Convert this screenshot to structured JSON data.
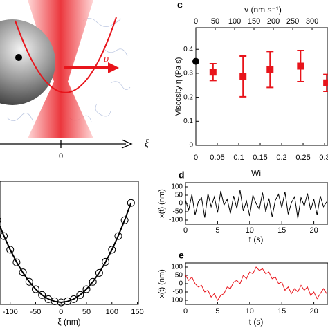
{
  "illustration": {
    "velocity_label": "υ",
    "axis_tick": "0",
    "axis_label": "ξ"
  },
  "chart_data": [
    {
      "type": "errorbar",
      "panel": "c",
      "ylabel": "Viscosity η (Pa s)",
      "xlabel": "Wi",
      "x2label": "v (nm s⁻¹)",
      "xlim": [
        0,
        0.308
      ],
      "xticks": [
        0,
        0.05,
        0.1,
        0.15,
        0.2,
        0.25,
        0.3
      ],
      "x2lim": [
        0,
        341
      ],
      "x2ticks": [
        0,
        50,
        100,
        150,
        200,
        250,
        300
      ],
      "ylim": [
        0,
        0.49
      ],
      "yticks": [
        0,
        0.1,
        0.2,
        0.3,
        0.4
      ],
      "series": [
        {
          "color": "#000000",
          "marker": "circle",
          "x": [
            0
          ],
          "values": [
            0.35
          ]
        },
        {
          "color": "#e8141b",
          "marker": "square",
          "x": [
            0.04,
            0.11,
            0.173,
            0.244,
            0.305
          ],
          "values": [
            0.305,
            0.287,
            0.316,
            0.33,
            0.26
          ],
          "errors": [
            0.035,
            0.085,
            0.075,
            0.065,
            0.035
          ]
        }
      ]
    },
    {
      "type": "scatter_fit",
      "xlabel": "ξ (nm)",
      "color": "#000000",
      "xlim": [
        -120,
        152
      ],
      "xticks": [
        -100,
        -50,
        0,
        50,
        100,
        150
      ],
      "ylim": [
        -0.4,
        23
      ],
      "x": [
        -125,
        -112.5,
        -100,
        -87.5,
        -75,
        -62.5,
        -50,
        -37.5,
        -25,
        -12.5,
        0,
        12.5,
        25,
        37.5,
        50,
        62.5,
        75,
        87.5,
        100,
        112.5,
        125,
        137.5
      ],
      "values": [
        15.6,
        12.6,
        10.0,
        7.6,
        5.7,
        3.9,
        2.5,
        1.4,
        0.6,
        0.2,
        0.0,
        0.2,
        0.6,
        1.4,
        2.5,
        3.9,
        5.6,
        7.7,
        10.0,
        12.6,
        15.6,
        18.9
      ],
      "fit_values": [
        15.63,
        12.66,
        10,
        7.66,
        5.63,
        3.91,
        2.5,
        1.41,
        0.63,
        0.16,
        0,
        0.16,
        0.63,
        1.41,
        2.5,
        3.91,
        5.63,
        7.66,
        10,
        12.66,
        15.63,
        18.91
      ]
    },
    {
      "type": "line",
      "panel": "d",
      "ylabel": "x(t) (nm)",
      "xlabel": "t (s)",
      "color": "#000000",
      "xlim": [
        0,
        22.2
      ],
      "xticks": [
        0,
        5,
        10,
        15,
        20
      ],
      "ylim": [
        -125,
        125
      ],
      "yticks": [
        100,
        50,
        0,
        -50,
        -100
      ],
      "x": [
        0,
        0.5,
        1,
        1.5,
        2,
        2.5,
        3,
        3.5,
        4,
        4.5,
        5,
        5.5,
        6,
        6.5,
        7,
        7.5,
        8,
        8.5,
        9,
        9.5,
        10,
        10.5,
        11,
        11.5,
        12,
        12.5,
        13,
        13.5,
        14,
        14.5,
        15,
        15.5,
        16,
        16.5,
        17,
        17.5,
        18,
        18.5,
        19,
        19.5,
        20,
        20.5,
        21,
        21.5,
        22
      ],
      "values": [
        20,
        -40,
        55,
        -70,
        10,
        35,
        -85,
        60,
        -20,
        40,
        -55,
        75,
        -10,
        25,
        -60,
        45,
        -30,
        80,
        -45,
        15,
        -75,
        50,
        0,
        -35,
        65,
        -50,
        30,
        -80,
        20,
        55,
        -25,
        70,
        -65,
        5,
        40,
        -90,
        35,
        -15,
        60,
        -40,
        25,
        -70,
        45,
        -20,
        10
      ]
    },
    {
      "type": "line",
      "panel": "e",
      "ylabel": "x(t) (nm)",
      "xlabel": "t (s)",
      "color": "#e8141b",
      "xlim": [
        0,
        22.2
      ],
      "xticks": [
        0,
        5,
        10,
        15,
        20
      ],
      "ylim": [
        -125,
        125
      ],
      "yticks": [
        100,
        50,
        0,
        -50,
        -100
      ],
      "x": [
        0,
        0.5,
        1,
        1.5,
        2,
        2.5,
        3,
        3.5,
        4,
        4.5,
        5,
        5.5,
        6,
        6.5,
        7,
        7.5,
        8,
        8.5,
        9,
        9.5,
        10,
        10.5,
        11,
        11.5,
        12,
        12.5,
        13,
        13.5,
        14,
        14.5,
        15,
        15.5,
        16,
        16.5,
        17,
        17.5,
        18,
        18.5,
        19,
        19.5,
        20,
        20.5,
        21,
        21.5,
        22
      ],
      "values": [
        50,
        20,
        40,
        0,
        -20,
        -10,
        -50,
        -40,
        -80,
        -60,
        -100,
        -70,
        -60,
        -20,
        -30,
        10,
        20,
        0,
        50,
        30,
        70,
        60,
        100,
        80,
        90,
        60,
        70,
        30,
        40,
        0,
        10,
        -40,
        -20,
        -60,
        -30,
        -50,
        -10,
        -40,
        -20,
        -70,
        -50,
        -90,
        -60,
        -30,
        -60
      ]
    }
  ]
}
